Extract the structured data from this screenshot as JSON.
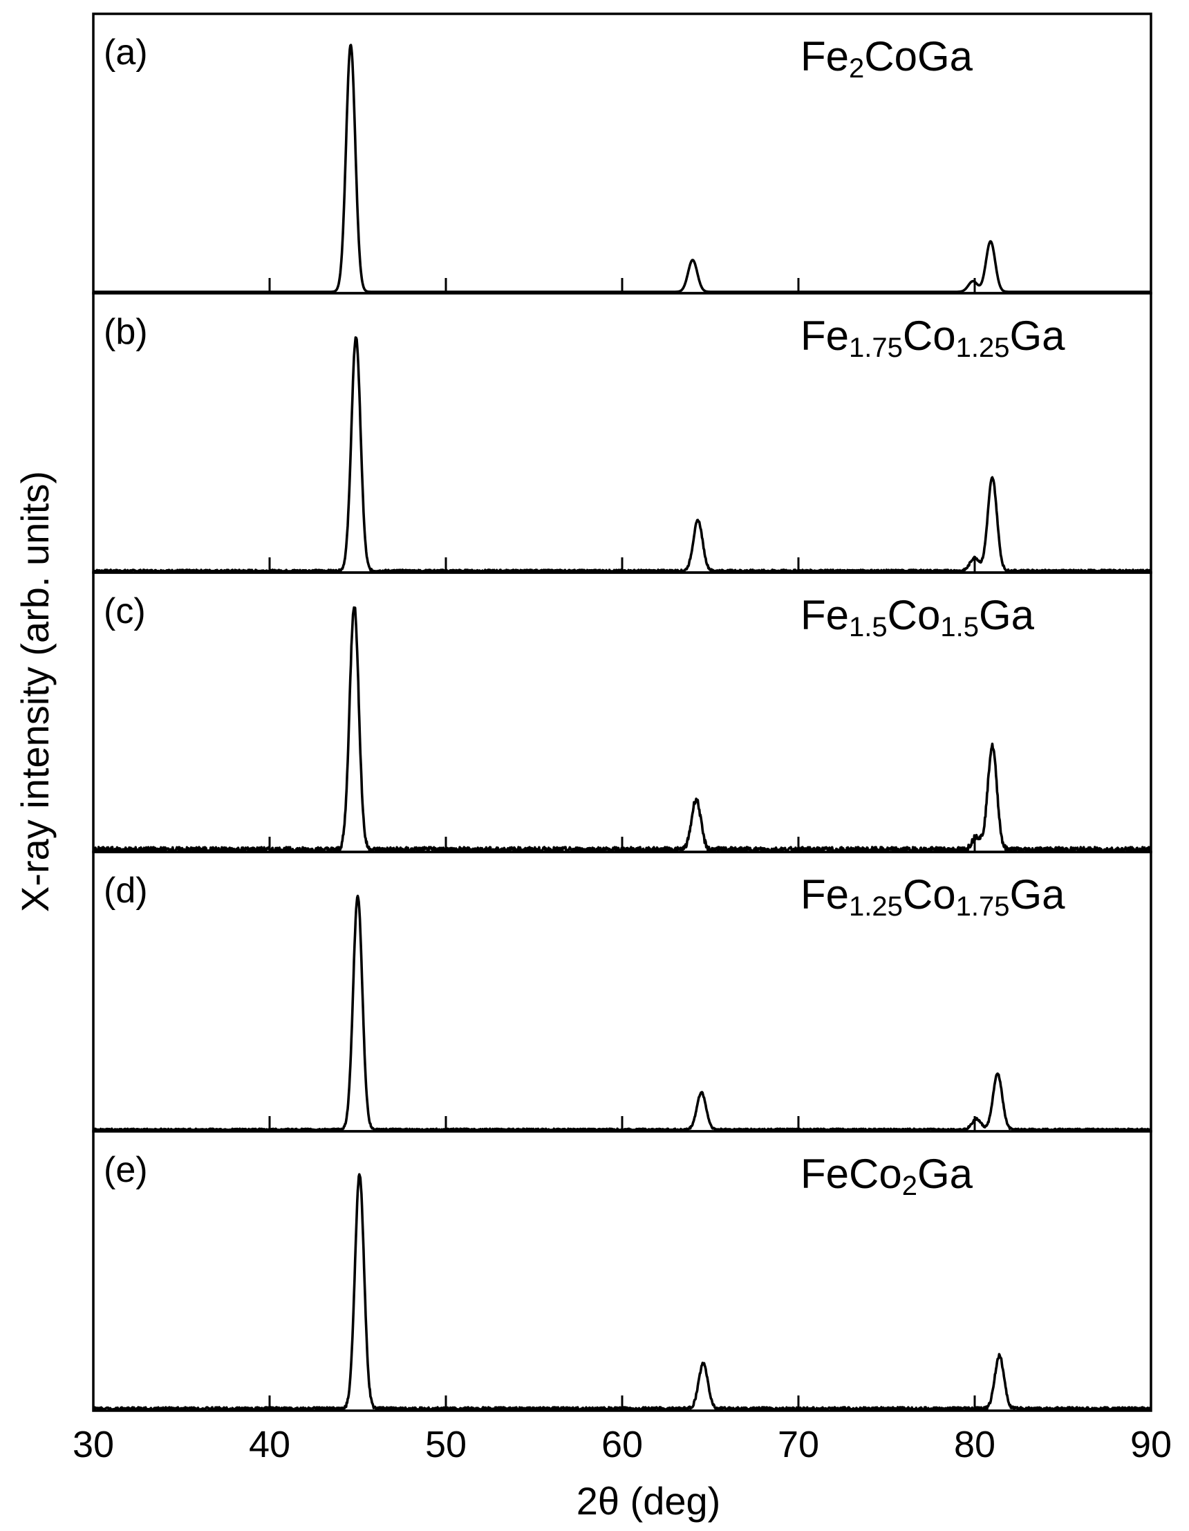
{
  "chart_data": {
    "type": "line",
    "xlabel": "2θ (deg)",
    "ylabel": "X-ray intensity (arb. units)",
    "xlim": [
      30,
      90
    ],
    "x_ticks": [
      30,
      40,
      50,
      60,
      70,
      80,
      90
    ],
    "y_axis_ticks": "none (arbitrary units)",
    "layout": "5 vertically stacked panels sharing the x axis",
    "grid": false,
    "line_color": "#000000",
    "panels": [
      {
        "label": "(a)",
        "compound": {
          "parts": [
            "Fe",
            "2",
            "CoGa"
          ]
        },
        "peaks": [
          {
            "x": 44.6,
            "relative_height": 0.93
          },
          {
            "x": 64.0,
            "relative_height": 0.12
          },
          {
            "x": 79.9,
            "relative_height": 0.04
          },
          {
            "x": 80.9,
            "relative_height": 0.19
          }
        ],
        "background_noise": 0.0
      },
      {
        "label": "(b)",
        "compound": {
          "parts": [
            "Fe",
            "1.75",
            "Co",
            "1.25",
            "Ga"
          ]
        },
        "peaks": [
          {
            "x": 44.9,
            "relative_height": 0.88
          },
          {
            "x": 64.3,
            "relative_height": 0.19
          },
          {
            "x": 80.0,
            "relative_height": 0.05
          },
          {
            "x": 81.0,
            "relative_height": 0.35
          }
        ],
        "background_noise": 0.008
      },
      {
        "label": "(c)",
        "compound": {
          "parts": [
            "Fe",
            "1.5",
            "Co",
            "1.5",
            "Ga"
          ]
        },
        "peaks": [
          {
            "x": 44.8,
            "relative_height": 0.92
          },
          {
            "x": 64.2,
            "relative_height": 0.19
          },
          {
            "x": 80.1,
            "relative_height": 0.05
          },
          {
            "x": 81.0,
            "relative_height": 0.39
          }
        ],
        "background_noise": 0.02
      },
      {
        "label": "(d)",
        "compound": {
          "parts": [
            "Fe",
            "1.25",
            "Co",
            "1.75",
            "Ga"
          ]
        },
        "peaks": [
          {
            "x": 45.0,
            "relative_height": 0.88
          },
          {
            "x": 64.5,
            "relative_height": 0.14
          },
          {
            "x": 80.1,
            "relative_height": 0.04
          },
          {
            "x": 81.3,
            "relative_height": 0.21
          }
        ],
        "background_noise": 0.007
      },
      {
        "label": "(e)",
        "compound": {
          "parts": [
            "FeCo",
            "2",
            "Ga"
          ]
        },
        "peaks": [
          {
            "x": 45.1,
            "relative_height": 0.88
          },
          {
            "x": 64.6,
            "relative_height": 0.17
          },
          {
            "x": 81.4,
            "relative_height": 0.2
          }
        ],
        "background_noise": 0.012
      }
    ]
  }
}
